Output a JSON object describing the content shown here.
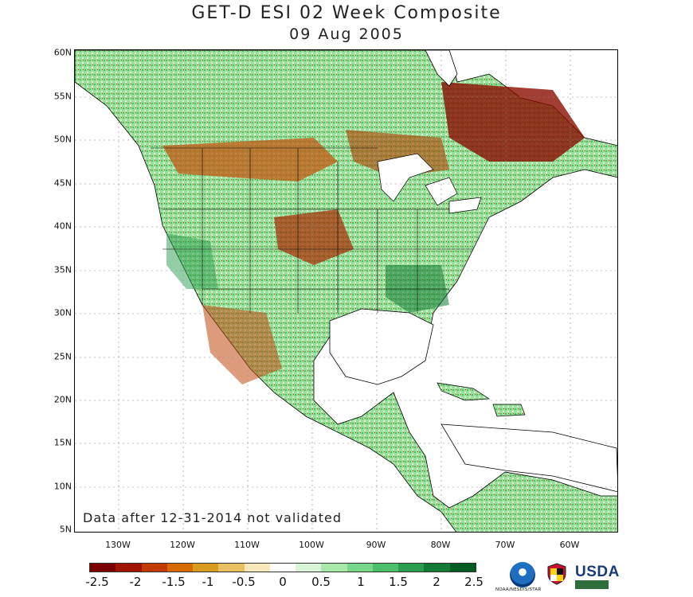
{
  "title": "GET-D ESI 02 Week Composite",
  "subtitle": "09 Aug 2005",
  "note": "Data after 12-31-2014 not validated",
  "lat_labels": [
    "60N",
    "55N",
    "50N",
    "45N",
    "40N",
    "35N",
    "30N",
    "25N",
    "20N",
    "15N",
    "10N",
    "5N"
  ],
  "lon_labels": [
    "130W",
    "120W",
    "110W",
    "100W",
    "90W",
    "80W",
    "70W",
    "60W"
  ],
  "colorbar": {
    "ticks": [
      "-2.5",
      "-2",
      "-1.5",
      "-1",
      "-0.5",
      "0",
      "0.5",
      "1",
      "1.5",
      "2",
      "2.5"
    ],
    "colors": [
      "#7a0000",
      "#a31400",
      "#c23a00",
      "#d46a00",
      "#d99a20",
      "#e8c060",
      "#f6e8b8",
      "#ffffff",
      "#d8f5d8",
      "#a8e8a8",
      "#78d88a",
      "#4cbf6a",
      "#2a9e4e",
      "#127a34",
      "#005c20"
    ]
  },
  "logos": {
    "noaa_caption": "NOAA/NESDIS/STAR",
    "usda_text": "USDA"
  }
}
